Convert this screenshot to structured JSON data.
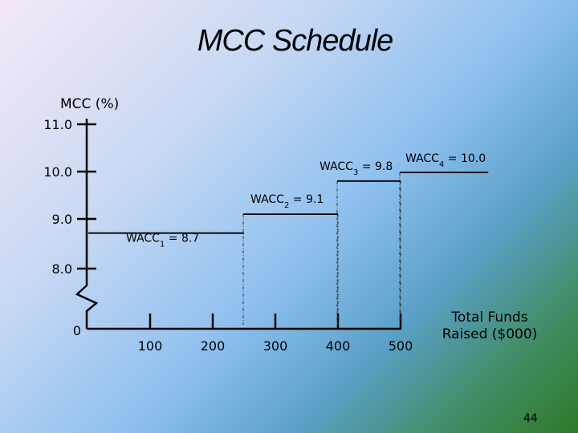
{
  "title": "MCC Schedule",
  "page_number": "44",
  "chart_data": {
    "type": "line",
    "title": "MCC Schedule",
    "ylabel": "MCC (%)",
    "xlabel": "Total Funds Raised ($000)",
    "y_ticks": [
      "11.0",
      "10.0",
      "9.0",
      "8.0"
    ],
    "x_ticks": [
      "100",
      "200",
      "300",
      "400",
      "500"
    ],
    "x_origin_label": "0",
    "axis_break": true,
    "steps": [
      {
        "label": "WACC",
        "sub": "1",
        "value_text": " = 8.7",
        "value": 8.7,
        "x_start": 0,
        "x_end": 250
      },
      {
        "label": "WACC",
        "sub": "2",
        "value_text": " = 9.1",
        "value": 9.1,
        "x_start": 250,
        "x_end": 400
      },
      {
        "label": "WACC",
        "sub": "3",
        "value_text": " = 9.8",
        "value": 9.8,
        "x_start": 400,
        "x_end": 500
      },
      {
        "label": "WACC",
        "sub": "4",
        "value_text": " = 10.0",
        "value": 10.0,
        "x_start": 500,
        "x_end": 640
      }
    ]
  }
}
